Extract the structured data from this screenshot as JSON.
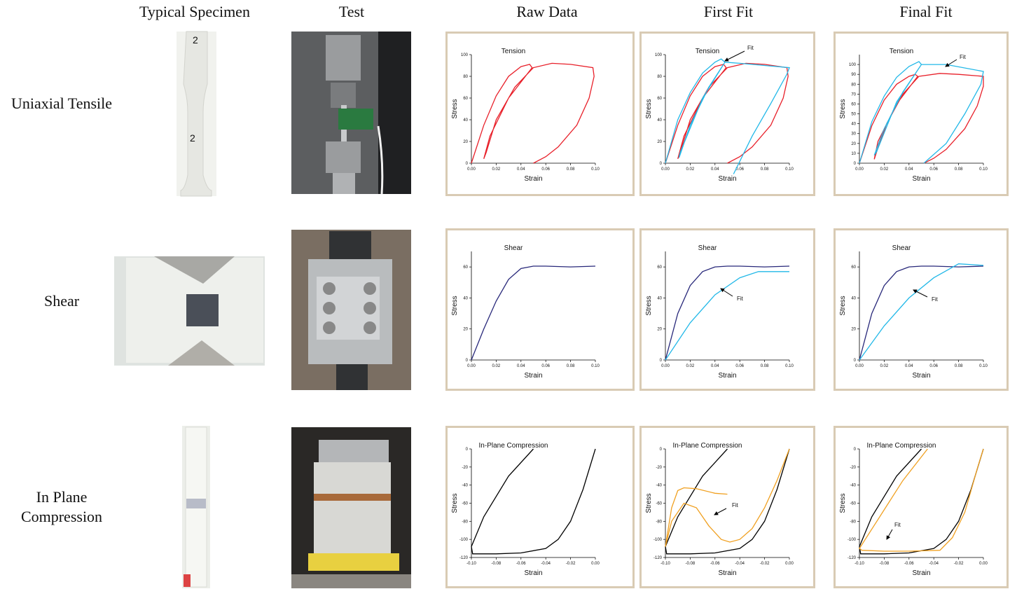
{
  "columns": [
    "Typical Specimen",
    "Test",
    "Raw Data",
    "First Fit",
    "Final Fit"
  ],
  "rows": [
    "Uniaxial Tensile",
    "Shear",
    "In Plane Compression"
  ],
  "charts": [
    {
      "type": "line",
      "title": "Tension",
      "xlabel": "Strain",
      "ylabel": "Stress",
      "xlim": [
        0,
        0.1
      ],
      "ylim": [
        0,
        100
      ],
      "xticks": [
        {
          "value": 0,
          "label": "0.00"
        },
        {
          "value": 0.02,
          "label": "0.02"
        },
        {
          "value": 0.04,
          "label": "0.04"
        },
        {
          "value": 0.06,
          "label": "0.06"
        },
        {
          "value": 0.08,
          "label": "0.08"
        },
        {
          "value": 0.1,
          "label": "0.10"
        }
      ],
      "yticks": [
        0,
        20,
        40,
        60,
        80,
        100
      ],
      "series": [
        {
          "color": "#e8202a",
          "x": [
            0,
            0.01,
            0.02,
            0.03,
            0.04,
            0.047,
            0.049,
            0.03,
            0.015,
            0.01,
            0.012,
            0.02,
            0.035,
            0.05,
            0.065,
            0.08,
            0.098,
            0.099,
            0.095,
            0.085,
            0.07,
            0.06,
            0.05
          ],
          "y": [
            0,
            35,
            62,
            80,
            89,
            91,
            88,
            60,
            25,
            4,
            10,
            40,
            70,
            88,
            92,
            91,
            88,
            80,
            60,
            35,
            15,
            6,
            0
          ]
        }
      ]
    },
    {
      "type": "line",
      "title": "Tension",
      "xlabel": "Strain",
      "ylabel": "Stress",
      "xlim": [
        0,
        0.1
      ],
      "ylim": [
        0,
        100
      ],
      "annotation": "Fit",
      "xticks": [
        {
          "value": 0,
          "label": "0.00"
        },
        {
          "value": 0.02,
          "label": "0.02"
        },
        {
          "value": 0.04,
          "label": "0.04"
        },
        {
          "value": 0.06,
          "label": "0.06"
        },
        {
          "value": 0.08,
          "label": "0.08"
        },
        {
          "value": 0.1,
          "label": "0.10"
        }
      ],
      "yticks": [
        0,
        20,
        40,
        60,
        80,
        100
      ],
      "series": [
        {
          "color": "#e8202a",
          "x": [
            0,
            0.01,
            0.02,
            0.03,
            0.04,
            0.047,
            0.049,
            0.03,
            0.015,
            0.01,
            0.012,
            0.02,
            0.035,
            0.05,
            0.065,
            0.08,
            0.098,
            0.099,
            0.095,
            0.085,
            0.07,
            0.06,
            0.05
          ],
          "y": [
            0,
            35,
            62,
            80,
            89,
            91,
            88,
            60,
            25,
            4,
            10,
            40,
            70,
            88,
            92,
            91,
            88,
            80,
            60,
            35,
            15,
            6,
            0
          ]
        },
        {
          "color": "#22b8e8",
          "x": [
            0,
            0.01,
            0.02,
            0.03,
            0.04,
            0.045,
            0.048,
            0.03,
            0.012,
            0.011,
            0.02,
            0.035,
            0.048,
            0.06,
            0.08,
            0.1,
            0.098,
            0.085,
            0.07,
            0.055
          ],
          "y": [
            0,
            40,
            65,
            83,
            93,
            96,
            93,
            60,
            10,
            5,
            35,
            70,
            93,
            92,
            90,
            88,
            82,
            55,
            25,
            -10
          ]
        }
      ]
    },
    {
      "type": "line",
      "title": "Tension",
      "xlabel": "Strain",
      "ylabel": "Stress",
      "xlim": [
        0,
        0.1
      ],
      "ylim": [
        0,
        110
      ],
      "annotation": "Fit",
      "xticks": [
        {
          "value": 0,
          "label": "0.00"
        },
        {
          "value": 0.02,
          "label": "0.02"
        },
        {
          "value": 0.04,
          "label": "0.04"
        },
        {
          "value": 0.06,
          "label": "0.06"
        },
        {
          "value": 0.08,
          "label": "0.08"
        },
        {
          "value": 0.1,
          "label": "0.10"
        }
      ],
      "yticks": [
        0,
        10,
        20,
        30,
        40,
        50,
        60,
        70,
        80,
        90,
        100
      ],
      "series": [
        {
          "color": "#e8202a",
          "x": [
            0,
            0.01,
            0.02,
            0.03,
            0.04,
            0.045,
            0.047,
            0.03,
            0.015,
            0.012,
            0.014,
            0.022,
            0.035,
            0.048,
            0.065,
            0.08,
            0.1,
            0.1,
            0.095,
            0.085,
            0.07,
            0.06,
            0.052
          ],
          "y": [
            0,
            38,
            64,
            80,
            88,
            90,
            88,
            60,
            22,
            4,
            12,
            40,
            70,
            88,
            91,
            90,
            88,
            78,
            58,
            35,
            14,
            5,
            0
          ]
        },
        {
          "color": "#22b8e8",
          "x": [
            0,
            0.01,
            0.02,
            0.03,
            0.04,
            0.048,
            0.05,
            0.03,
            0.014,
            0.012,
            0.02,
            0.035,
            0.05,
            0.07,
            0.1,
            0.098,
            0.085,
            0.07,
            0.052
          ],
          "y": [
            0,
            42,
            68,
            87,
            98,
            103,
            100,
            62,
            12,
            8,
            35,
            72,
            100,
            100,
            93,
            80,
            50,
            20,
            0
          ]
        }
      ]
    },
    {
      "type": "line",
      "title": "Shear",
      "xlabel": "Strain",
      "ylabel": "Stress",
      "xlim": [
        0,
        0.1
      ],
      "ylim": [
        0,
        70
      ],
      "xticks": [
        {
          "value": 0,
          "label": "0.00"
        },
        {
          "value": 0.02,
          "label": "0.02"
        },
        {
          "value": 0.04,
          "label": "0.04"
        },
        {
          "value": 0.06,
          "label": "0.06"
        },
        {
          "value": 0.08,
          "label": "0.08"
        },
        {
          "value": 0.1,
          "label": "0.10"
        }
      ],
      "yticks": [
        0,
        20,
        40,
        60
      ],
      "series": [
        {
          "color": "#28287a",
          "x": [
            0,
            0.01,
            0.02,
            0.03,
            0.04,
            0.05,
            0.06,
            0.08,
            0.1
          ],
          "y": [
            0,
            20,
            38,
            52,
            59,
            60.5,
            60.5,
            60,
            60.5
          ]
        }
      ]
    },
    {
      "type": "line",
      "title": "Shear",
      "xlabel": "Strain",
      "ylabel": "Stress",
      "xlim": [
        0,
        0.1
      ],
      "ylim": [
        0,
        70
      ],
      "annotation": "Fit",
      "xticks": [
        {
          "value": 0,
          "label": "0.00"
        },
        {
          "value": 0.02,
          "label": "0.02"
        },
        {
          "value": 0.04,
          "label": "0.04"
        },
        {
          "value": 0.06,
          "label": "0.06"
        },
        {
          "value": 0.08,
          "label": "0.08"
        },
        {
          "value": 0.1,
          "label": "0.10"
        }
      ],
      "yticks": [
        0,
        20,
        40,
        60
      ],
      "series": [
        {
          "color": "#28287a",
          "x": [
            0,
            0.01,
            0.02,
            0.03,
            0.04,
            0.05,
            0.06,
            0.08,
            0.1
          ],
          "y": [
            0,
            30,
            48,
            57,
            60,
            60.5,
            60.5,
            60,
            60.5
          ]
        },
        {
          "color": "#22b8e8",
          "x": [
            0,
            0.02,
            0.04,
            0.06,
            0.075,
            0.1
          ],
          "y": [
            0,
            24,
            42,
            53,
            57,
            57
          ]
        }
      ]
    },
    {
      "type": "line",
      "title": "Shear",
      "xlabel": "Strain",
      "ylabel": "Stress",
      "xlim": [
        0,
        0.1
      ],
      "ylim": [
        0,
        70
      ],
      "annotation": "Fit",
      "xticks": [
        {
          "value": 0,
          "label": "0.00"
        },
        {
          "value": 0.02,
          "label": "0.02"
        },
        {
          "value": 0.04,
          "label": "0.04"
        },
        {
          "value": 0.06,
          "label": "0.06"
        },
        {
          "value": 0.08,
          "label": "0.08"
        },
        {
          "value": 0.1,
          "label": "0.10"
        }
      ],
      "yticks": [
        0,
        20,
        40,
        60
      ],
      "series": [
        {
          "color": "#28287a",
          "x": [
            0,
            0.01,
            0.02,
            0.03,
            0.04,
            0.05,
            0.06,
            0.08,
            0.1
          ],
          "y": [
            0,
            30,
            48,
            57,
            60,
            60.5,
            60.5,
            60,
            60.5
          ]
        },
        {
          "color": "#22b8e8",
          "x": [
            0,
            0.02,
            0.04,
            0.06,
            0.08,
            0.1
          ],
          "y": [
            0,
            22,
            40,
            53,
            62,
            61
          ]
        }
      ]
    },
    {
      "type": "line",
      "title": "In-Plane Compression",
      "xlabel": "Strain",
      "ylabel": "Stress",
      "xlim": [
        -0.1,
        0
      ],
      "ylim": [
        -120,
        0
      ],
      "xticks": [
        {
          "value": -0.1,
          "label": "-0.10"
        },
        {
          "value": -0.08,
          "label": "-0.08"
        },
        {
          "value": -0.06,
          "label": "-0.06"
        },
        {
          "value": -0.04,
          "label": "-0.04"
        },
        {
          "value": -0.02,
          "label": "-0.02"
        },
        {
          "value": 0,
          "label": "0.00"
        }
      ],
      "yticks": [
        0,
        -20,
        -40,
        -60,
        -80,
        -100,
        -120
      ],
      "series": [
        {
          "color": "#000000",
          "x": [
            -0.05,
            -0.07,
            -0.09,
            -0.1,
            -0.099,
            -0.08,
            -0.06,
            -0.04,
            -0.03,
            -0.02,
            -0.01,
            0
          ],
          "y": [
            0,
            -30,
            -75,
            -108,
            -116,
            -116,
            -115,
            -110,
            -100,
            -80,
            -45,
            0
          ]
        }
      ]
    },
    {
      "type": "line",
      "title": "In-Plane Compression",
      "xlabel": "Strain",
      "ylabel": "Stress",
      "xlim": [
        -0.1,
        0
      ],
      "ylim": [
        -120,
        0
      ],
      "annotation": "Fit",
      "xticks": [
        {
          "value": -0.1,
          "label": "-0.10"
        },
        {
          "value": -0.08,
          "label": "-0.08"
        },
        {
          "value": -0.06,
          "label": "-0.06"
        },
        {
          "value": -0.04,
          "label": "-0.04"
        },
        {
          "value": -0.02,
          "label": "-0.02"
        },
        {
          "value": 0,
          "label": "0.00"
        }
      ],
      "yticks": [
        0,
        -20,
        -40,
        -60,
        -80,
        -100,
        -120
      ],
      "series": [
        {
          "color": "#000000",
          "x": [
            -0.05,
            -0.07,
            -0.09,
            -0.1,
            -0.099,
            -0.08,
            -0.06,
            -0.04,
            -0.03,
            -0.02,
            -0.01,
            0
          ],
          "y": [
            0,
            -30,
            -75,
            -108,
            -116,
            -116,
            -115,
            -110,
            -100,
            -80,
            -45,
            0
          ]
        },
        {
          "color": "#f0a020",
          "x": [
            -0.1,
            -0.095,
            -0.09,
            -0.085,
            -0.075,
            -0.06,
            -0.05
          ],
          "y": [
            -108,
            -65,
            -46,
            -43,
            -44,
            -49,
            -50
          ]
        },
        {
          "color": "#f0a020",
          "x": [
            -0.1,
            -0.095,
            -0.085,
            -0.075,
            -0.065,
            -0.055,
            -0.048,
            -0.04,
            -0.03,
            -0.02,
            -0.01,
            0
          ],
          "y": [
            -108,
            -80,
            -60,
            -65,
            -85,
            -100,
            -103,
            -100,
            -88,
            -65,
            -35,
            0
          ]
        }
      ]
    },
    {
      "type": "line",
      "title": "In-Plane Compression",
      "xlabel": "Strain",
      "ylabel": "Stress",
      "xlim": [
        -0.1,
        0
      ],
      "ylim": [
        -120,
        0
      ],
      "annotation": "Fit",
      "xticks": [
        {
          "value": -0.1,
          "label": "-0.10"
        },
        {
          "value": -0.08,
          "label": "-0.08"
        },
        {
          "value": -0.06,
          "label": "-0.06"
        },
        {
          "value": -0.04,
          "label": "-0.04"
        },
        {
          "value": -0.02,
          "label": "-0.02"
        },
        {
          "value": 0,
          "label": "0.00"
        }
      ],
      "yticks": [
        0,
        -20,
        -40,
        -60,
        -80,
        -100,
        -120
      ],
      "series": [
        {
          "color": "#000000",
          "x": [
            -0.05,
            -0.07,
            -0.09,
            -0.1,
            -0.099,
            -0.08,
            -0.06,
            -0.04,
            -0.03,
            -0.02,
            -0.01,
            0
          ],
          "y": [
            0,
            -30,
            -75,
            -108,
            -116,
            -116,
            -115,
            -110,
            -100,
            -80,
            -45,
            0
          ]
        },
        {
          "color": "#f0a020",
          "x": [
            -0.045,
            -0.065,
            -0.085,
            -0.1,
            -0.098,
            -0.08,
            -0.06,
            -0.035,
            -0.025,
            -0.015,
            -0.005,
            0
          ],
          "y": [
            0,
            -35,
            -78,
            -110,
            -112,
            -113,
            -113,
            -112,
            -98,
            -70,
            -22,
            0
          ]
        }
      ]
    }
  ]
}
